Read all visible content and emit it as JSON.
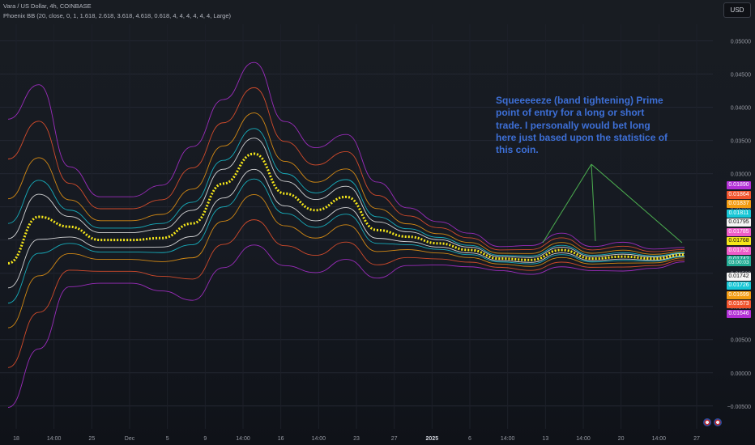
{
  "header": {
    "symbol_line": "Vara / US Dollar, 4h, COINBASE",
    "indicator_line": "Phoenix BB (20, close, 0, 1, 1.618, 2.618, 3.618, 4.618, 0.618, 4, 4, 4, 4, 4, 4, Large)",
    "currency_button": "USD"
  },
  "annotation": {
    "text": "Squeeeeeze (band tightening) Prime point of entry for a long or short trade. I personally would bet long here just based upon the statistice of this coin."
  },
  "chart_data": {
    "type": "line",
    "y_axis": {
      "position": "right",
      "range": [
        -0.006,
        0.0525
      ],
      "ticks": [
        "−0.00500",
        "0.00000",
        "0.00500",
        "0.01000",
        "0.01500",
        "0.02000",
        "0.02500",
        "0.03000",
        "0.03500",
        "0.04000",
        "0.04500",
        "0.05000"
      ]
    },
    "x_axis": {
      "ticks": [
        "18",
        "14:00",
        "25",
        "Dec",
        "5",
        "9",
        "14:00",
        "16",
        "14:00",
        "23",
        "27",
        "2025",
        "6",
        "14:00",
        "13",
        "14:00",
        "20",
        "14:00",
        "27"
      ],
      "bold_ticks": [
        "2025"
      ]
    },
    "grid": true,
    "price_labels": [
      {
        "text": "0.01890",
        "color": "#b22fd6",
        "value": 0.0189
      },
      {
        "text": "0.01864",
        "color": "#f2542d",
        "value": 0.01864
      },
      {
        "text": "0.01837",
        "color": "#f39c12",
        "value": 0.01837
      },
      {
        "text": "0.01811",
        "color": "#17c7d6",
        "value": 0.01811
      },
      {
        "text": "0.01795",
        "color": "#f5f5f5",
        "value": 0.01795
      },
      {
        "text": "0.01785",
        "color": "#ee5cc8",
        "value": 0.01785
      },
      {
        "text": "0.01768",
        "color": "#f6e71a",
        "value": 0.01768
      },
      {
        "text": "0.01752",
        "color": "#ee5cc8",
        "value": 0.01752
      },
      {
        "text": "0.01742",
        "color": "#22ab94",
        "value": 0.01742
      },
      {
        "text": "0.01742",
        "color": "#f5f5f5",
        "value": 0.01742
      },
      {
        "text": "0.01726",
        "color": "#17c7d6",
        "value": 0.01726
      },
      {
        "text": "0.01699",
        "color": "#f39c12",
        "value": 0.01699
      },
      {
        "text": "0.01673",
        "color": "#f2542d",
        "value": 0.01673
      },
      {
        "text": "0.01646",
        "color": "#b22fd6",
        "value": 0.01646
      }
    ],
    "countdown": "03:00:03",
    "series": [
      {
        "color": "#f6e71a",
        "role": "basis",
        "values": [
          0.0165,
          0.0235,
          0.022,
          0.02,
          0.02,
          0.0203,
          0.0225,
          0.0285,
          0.033,
          0.027,
          0.0245,
          0.0265,
          0.0215,
          0.0205,
          0.0195,
          0.0185,
          0.0172,
          0.017,
          0.0185,
          0.0172,
          0.0175,
          0.0172,
          0.0178
        ]
      },
      {
        "color": "#f5f5f5",
        "dev": 0.618,
        "values": [
          0.0165,
          0.0235,
          0.022,
          0.02,
          0.02,
          0.0203,
          0.0225,
          0.0285,
          0.033,
          0.027,
          0.0245,
          0.0265,
          0.0215,
          0.0205,
          0.0195,
          0.0185,
          0.0172,
          0.017,
          0.0185,
          0.0172,
          0.0175,
          0.0172,
          0.0178
        ]
      },
      {
        "color": "#17c7d6",
        "dev": 1,
        "values": [
          0.0165,
          0.0235,
          0.022,
          0.02,
          0.02,
          0.0203,
          0.0225,
          0.0285,
          0.033,
          0.027,
          0.0245,
          0.0265,
          0.0215,
          0.0205,
          0.0195,
          0.0185,
          0.0172,
          0.017,
          0.0185,
          0.0172,
          0.0175,
          0.0172,
          0.0178
        ]
      },
      {
        "color": "#f39c12",
        "dev": 1.618,
        "values": [
          0.0165,
          0.0235,
          0.022,
          0.02,
          0.02,
          0.0203,
          0.0225,
          0.0285,
          0.033,
          0.027,
          0.0245,
          0.0265,
          0.0215,
          0.0205,
          0.0195,
          0.0185,
          0.0172,
          0.017,
          0.0185,
          0.0172,
          0.0175,
          0.0172,
          0.0178
        ]
      },
      {
        "color": "#f2542d",
        "dev": 2.618,
        "values": [
          0.0165,
          0.0235,
          0.022,
          0.02,
          0.02,
          0.0203,
          0.0225,
          0.0285,
          0.033,
          0.027,
          0.0245,
          0.0265,
          0.0215,
          0.0205,
          0.0195,
          0.0185,
          0.0172,
          0.017,
          0.0185,
          0.0172,
          0.0175,
          0.0172,
          0.0178
        ]
      },
      {
        "color": "#b22fd6",
        "dev": 3.618,
        "values": [
          0.0165,
          0.0235,
          0.022,
          0.02,
          0.02,
          0.0203,
          0.0225,
          0.0285,
          0.033,
          0.027,
          0.0245,
          0.0265,
          0.0215,
          0.0205,
          0.0195,
          0.0185,
          0.0172,
          0.017,
          0.0185,
          0.0172,
          0.0175,
          0.0172,
          0.0178
        ]
      }
    ],
    "band_halfwidth": [
      0.006,
      0.0055,
      0.0025,
      0.0018,
      0.0018,
      0.0022,
      0.0032,
      0.0035,
      0.0038,
      0.003,
      0.0026,
      0.0026,
      0.002,
      0.0012,
      0.0009,
      0.0007,
      0.0005,
      0.0006,
      0.0007,
      0.0005,
      0.0006,
      0.0004,
      0.0003
    ]
  }
}
